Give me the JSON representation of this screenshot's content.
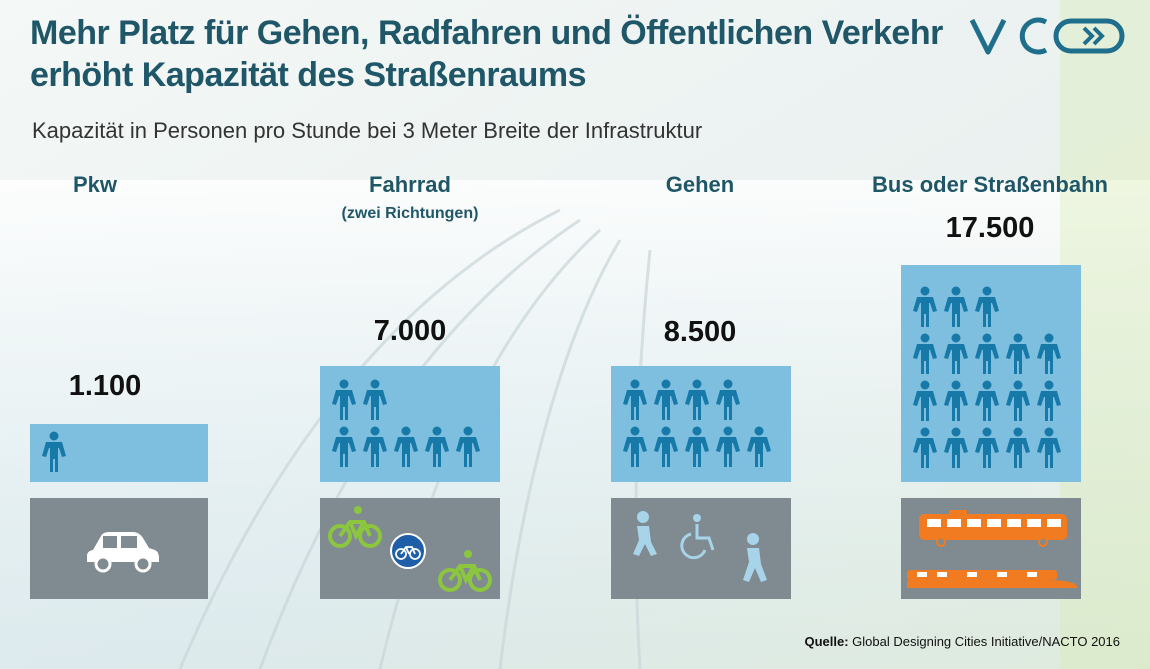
{
  "title_line1": "Mehr Platz für Gehen, Radfahren und Öffentlichen Verkehr",
  "title_line2": "erhöht Kapazität des Straßenraums",
  "subtitle": "Kapazität in Personen pro Stunde bei 3 Meter Breite der Infrastruktur",
  "logo_text": "VCÖ",
  "source_label": "Quelle:",
  "source_text": "Global Designing Cities Initiative/NACTO 2016",
  "colors": {
    "title": "#1f5668",
    "capacity_box": "#7ebfe0",
    "person_icon": "#1779a8",
    "road": "#7f8a91",
    "bike": "#8cc63f",
    "transit": "#f07b21",
    "logo": "#1f6e8c"
  },
  "chart_data": {
    "type": "bar",
    "title": "Kapazität in Personen pro Stunde bei 3 Meter Breite der Infrastruktur",
    "categories": [
      "Pkw",
      "Fahrrad",
      "Gehen",
      "Bus oder Straßenbahn"
    ],
    "category_notes": [
      "",
      "(zwei Richtungen)",
      "",
      ""
    ],
    "values": [
      1100,
      7000,
      8500,
      17500
    ],
    "value_labels": [
      "1.100",
      "7.000",
      "8.500",
      "17.500"
    ],
    "person_icons": [
      1,
      7,
      9,
      18
    ],
    "mode_icons": [
      [
        "car-icon"
      ],
      [
        "bicycle-icon",
        "bike-sign-icon",
        "bicycle-icon"
      ],
      [
        "walking-icon",
        "wheelchair-icon",
        "walking-icon"
      ],
      [
        "bus-icon",
        "tram-icon"
      ]
    ]
  }
}
